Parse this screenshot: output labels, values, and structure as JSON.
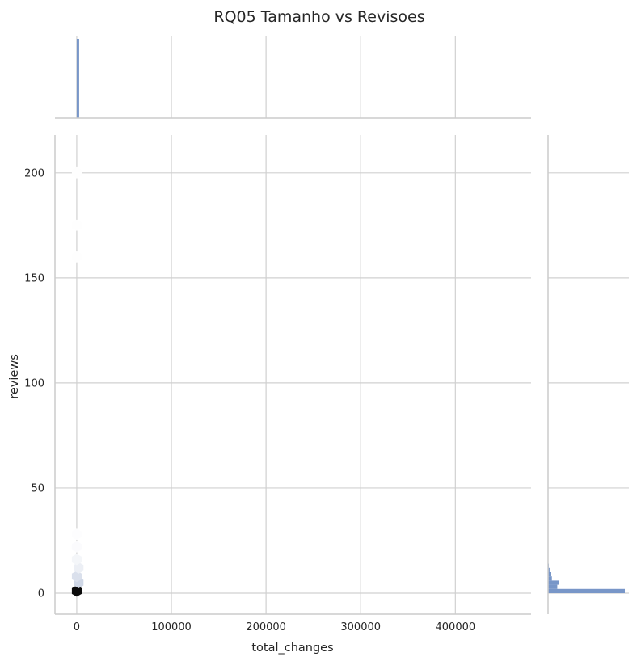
{
  "chart_data": {
    "type": "hexbin-jointplot",
    "title": "RQ05 Tamanho vs Revisoes",
    "xlabel": "total_changes",
    "ylabel": "reviews",
    "xlim": [
      -23000,
      480000
    ],
    "ylim": [
      -10,
      218
    ],
    "x_ticks": [
      0,
      100000,
      200000,
      300000,
      400000
    ],
    "y_ticks": [
      0,
      50,
      100,
      150,
      200
    ],
    "grid": true,
    "colors": {
      "hist": "#7896c8",
      "grid": "#d0d0d0",
      "spine": "#cccccc",
      "text": "#262626",
      "hex_dark": "#0b0b0b",
      "hex_mid": "#c9d2e3",
      "hex_light": "#e8ecf3"
    },
    "hexbins": [
      {
        "x": 0,
        "y": 1,
        "density": 1.0
      },
      {
        "x": 2000,
        "y": 5,
        "density": 0.22
      },
      {
        "x": 0,
        "y": 8,
        "density": 0.17
      },
      {
        "x": 2000,
        "y": 12,
        "density": 0.09
      },
      {
        "x": 0,
        "y": 16,
        "density": 0.05
      },
      {
        "x": 0,
        "y": 22,
        "density": 0.02
      },
      {
        "x": 0,
        "y": 28,
        "density": 0.01
      },
      {
        "x": 0,
        "y": 160,
        "density": 0.006
      },
      {
        "x": 0,
        "y": 175,
        "density": 0.006
      },
      {
        "x": 0,
        "y": 200,
        "density": 0.006
      }
    ],
    "marginal_x": {
      "bins": [
        {
          "x0": 0,
          "x1": 1500,
          "density": 1.0
        }
      ]
    },
    "marginal_y": {
      "bins": [
        {
          "y0": 0,
          "y1": 2,
          "density": 1.0
        },
        {
          "y0": 2,
          "y1": 4,
          "density": 0.12
        },
        {
          "y0": 4,
          "y1": 6,
          "density": 0.14
        },
        {
          "y0": 6,
          "y1": 8,
          "density": 0.05
        },
        {
          "y0": 8,
          "y1": 10,
          "density": 0.04
        },
        {
          "y0": 10,
          "y1": 12,
          "density": 0.02
        },
        {
          "y0": 12,
          "y1": 14,
          "density": 0.01
        }
      ]
    }
  }
}
